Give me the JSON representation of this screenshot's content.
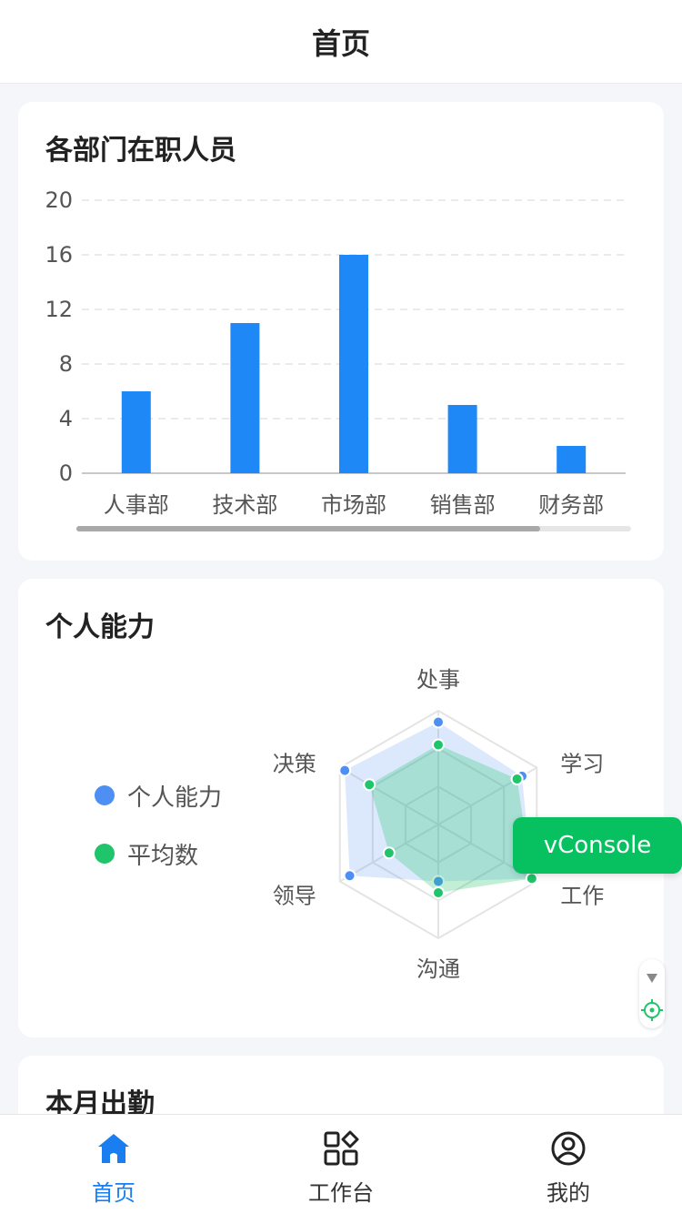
{
  "nav": {
    "title": "首页"
  },
  "bar_card": {
    "title": "各部门在职人员"
  },
  "radar_card": {
    "title": "个人能力"
  },
  "attend_card": {
    "title": "本月出勤"
  },
  "vconsole": {
    "label": "vConsole"
  },
  "tabs": [
    {
      "label": "首页",
      "icon": "home-icon",
      "active": true
    },
    {
      "label": "工作台",
      "icon": "apps-grid-icon",
      "active": false
    },
    {
      "label": "我的",
      "icon": "user-circle-icon",
      "active": false
    }
  ],
  "colors": {
    "bar": "#1e88f6",
    "personal": "#4e8ff4",
    "average": "#1fc46b",
    "active_tab": "#1a7ef0",
    "vconsole": "#07c160"
  },
  "chart_data": [
    {
      "type": "bar",
      "categories": [
        "人事部",
        "技术部",
        "市场部",
        "销售部",
        "财务部"
      ],
      "values": [
        6,
        11,
        16,
        5,
        2
      ],
      "ylim": [
        0,
        20
      ],
      "yticks": [
        0,
        4,
        8,
        12,
        16,
        20
      ],
      "grid": true
    },
    {
      "type": "radar",
      "indicators": [
        "处事",
        "学习",
        "工作",
        "沟通",
        "领导",
        "决策"
      ],
      "max": 100,
      "series": [
        {
          "name": "个人能力",
          "values": [
            90,
            85,
            95,
            50,
            90,
            95
          ]
        },
        {
          "name": "平均数",
          "values": [
            70,
            80,
            95,
            60,
            50,
            70
          ]
        }
      ],
      "legend": "left"
    }
  ]
}
